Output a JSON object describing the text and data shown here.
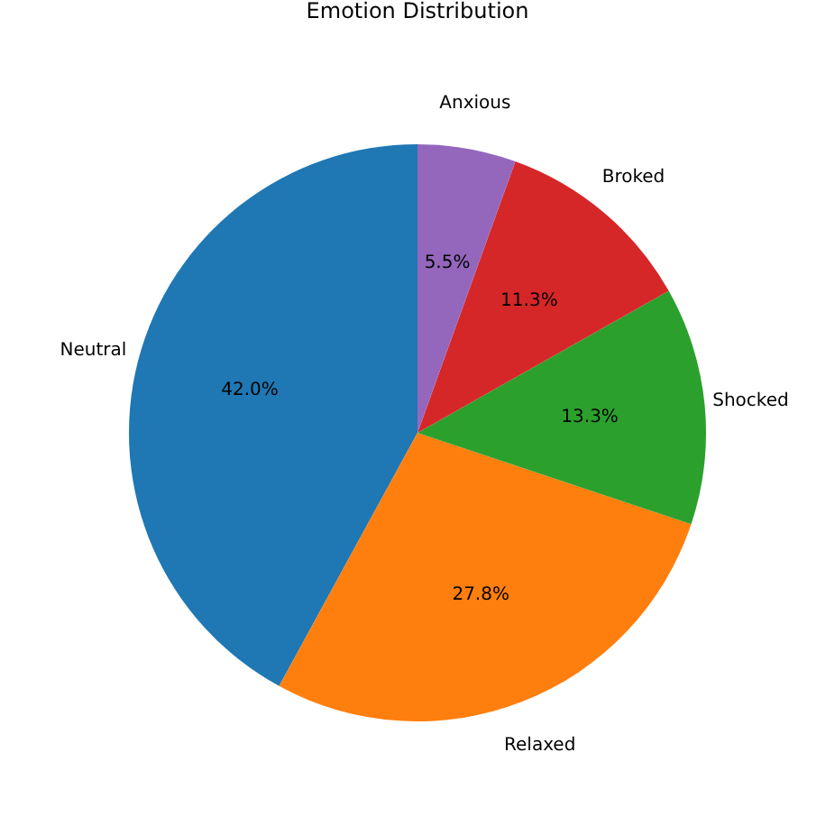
{
  "chart_data": {
    "type": "pie",
    "title": "Emotion Distribution",
    "categories": [
      "Neutral",
      "Relaxed",
      "Shocked",
      "Broked",
      "Anxious"
    ],
    "values": [
      42.0,
      27.8,
      13.3,
      11.3,
      5.5
    ],
    "colors": [
      "#1f77b4",
      "#ff7f0e",
      "#2ca02c",
      "#d62728",
      "#9467bd"
    ],
    "value_labels": [
      "42.0%",
      "27.8%",
      "13.3%",
      "11.3%",
      "5.5%"
    ]
  }
}
